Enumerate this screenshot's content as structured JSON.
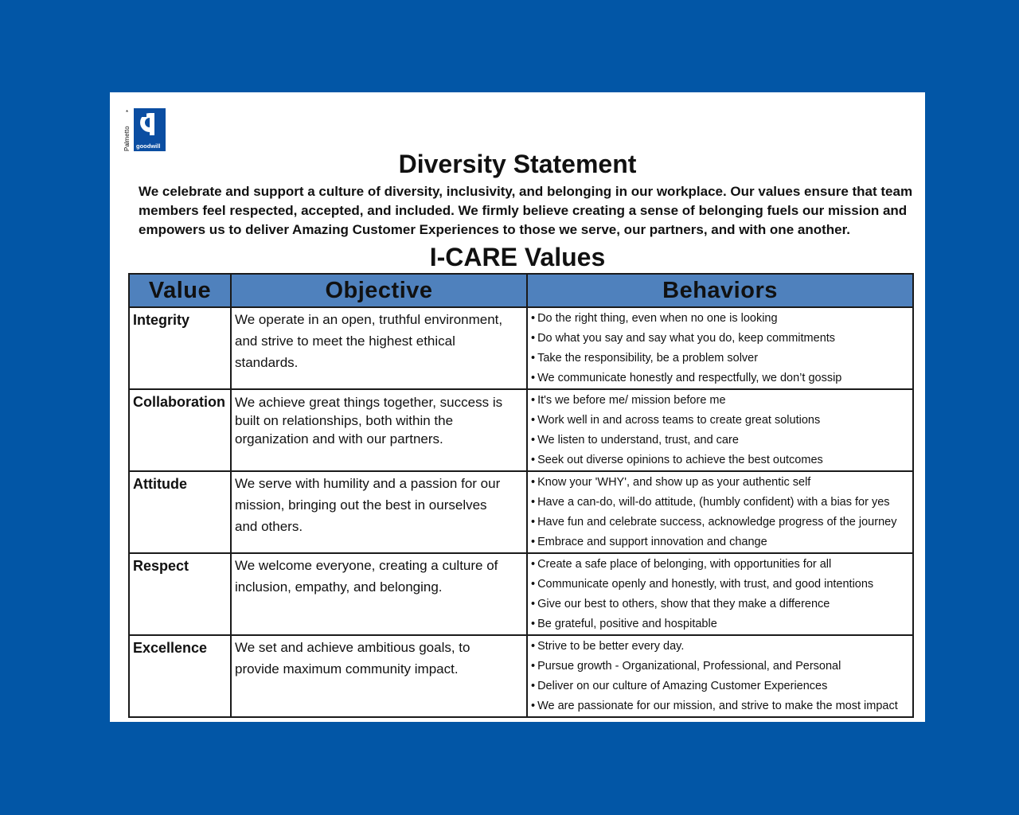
{
  "logo": {
    "brand_text": "goodwill",
    "region_text": "Palmetto",
    "colors": {
      "square": "#0b4ea2",
      "mark": "#ffffff"
    }
  },
  "title": "Diversity Statement",
  "statement": "We celebrate and support a culture of diversity, inclusivity, and belonging in our workplace.  Our values ensure that team members feel respected, accepted, and included.  We firmly believe creating a sense of belonging fuels our mission and empowers us to deliver Amazing Customer Experiences to those we serve, our partners, and with one another.",
  "subtitle": "I-CARE Values",
  "table": {
    "headers": [
      "Value",
      "Objective",
      "Behaviors"
    ],
    "rows": [
      {
        "value": "Integrity",
        "objective": "We operate in an open, truthful environment, and strive to meet the highest ethical standards.",
        "behaviors": [
          "Do the right thing, even when no one is looking",
          "Do what you say and say what you do, keep commitments",
          "Take the responsibility, be a problem solver",
          "We communicate honestly and respectfully, we don’t gossip"
        ]
      },
      {
        "value": "Collaboration",
        "objective": "We achieve great things together, success is built on relationships, both within the organization and with our partners.",
        "behaviors": [
          "It's we before me/ mission before me",
          "Work well in and across teams to create great solutions",
          "We listen to understand, trust, and care",
          "Seek out diverse opinions to achieve the best outcomes"
        ]
      },
      {
        "value": "Attitude",
        "objective": "We serve with humility and a passion for our mission, bringing out the best in ourselves and others.",
        "behaviors": [
          "Know your 'WHY', and show up as your authentic self",
          "Have a can-do, will-do attitude, (humbly confident) with a bias for yes",
          "Have fun and celebrate success, acknowledge progress of the journey",
          "Embrace and support innovation and change"
        ]
      },
      {
        "value": "Respect",
        "objective": "We welcome everyone, creating a culture of inclusion, empathy, and belonging.",
        "behaviors": [
          "Create a safe place of belonging, with opportunities for all",
          "Communicate openly and honestly, with trust, and good intentions",
          "Give our best to others, show that they make a difference",
          "Be grateful, positive and hospitable"
        ]
      },
      {
        "value": "Excellence",
        "objective": "We set and achieve ambitious goals, to provide maximum community impact.",
        "behaviors": [
          "Strive to be better every day.",
          "Pursue growth - Organizational, Professional, and Personal",
          "Deliver on our culture of Amazing Customer Experiences",
          "We are passionate for our mission, and strive to make the most impact"
        ]
      }
    ]
  },
  "colors": {
    "background": "#0256a6",
    "header_fill": "#4f81bd"
  }
}
